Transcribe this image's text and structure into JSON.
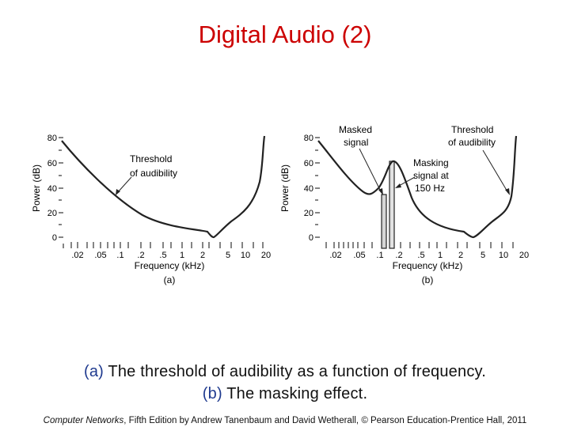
{
  "slide": {
    "title": "Digital Audio (2)",
    "caption": {
      "a_tag": "(a)",
      "a_text": " The threshold of audibility as a function of frequency.",
      "b_tag": "(b)",
      "b_text": " The masking effect."
    },
    "footer": {
      "book": "Computer Networks",
      "rest": ", Fifth Edition by Andrew Tanenbaum and David Wetherall, © Pearson Education-Prentice Hall, 2011"
    }
  },
  "figure": {
    "ylabel": "Power (dB)",
    "xlabel": "Frequency (kHz)",
    "y_ticks": [
      "0",
      "20",
      "40",
      "60",
      "80"
    ],
    "x_ticks": [
      ".02",
      ".05",
      ".1",
      ".2",
      ".5",
      "1",
      "2",
      "5",
      "10",
      "20"
    ],
    "panel_a": {
      "tag": "(a)",
      "annotation_line1": "Threshold",
      "annotation_line2": "of audibility"
    },
    "panel_b": {
      "tag": "(b)",
      "masked_line1": "Masked",
      "masked_line2": "signal",
      "threshold_line1": "Threshold",
      "threshold_line2": "of audibility",
      "masking_line1": "Masking",
      "masking_line2": "signal at",
      "masking_line3": "150 Hz"
    }
  }
}
